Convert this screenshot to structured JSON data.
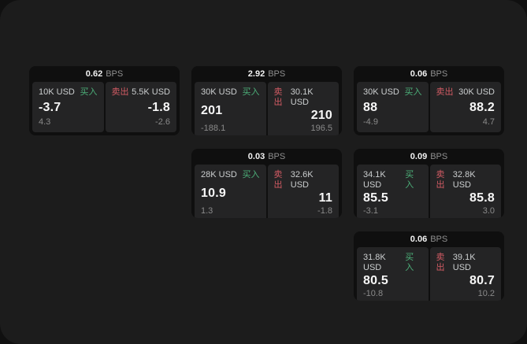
{
  "labels": {
    "unit": "BPS",
    "buy_label": "买入",
    "sell_label": "卖出"
  },
  "colors": {
    "screen_bg": "#1c1c1c",
    "card_bg": "#0f0f0f",
    "panel_bg": "#242425",
    "buy_green": "#4caf79",
    "sell_red": "#d25b64",
    "price_text": "#f7f7f7",
    "muted_text": "#8a8a8a"
  },
  "cards": [
    {
      "bps": "0.62",
      "grid": {
        "row": 1,
        "col": 1
      },
      "buy": {
        "amount": "10K USD",
        "price": "-3.7",
        "change": "4.3"
      },
      "sell": {
        "amount": "5.5K USD",
        "price": "-1.8",
        "change": "-2.6"
      }
    },
    {
      "bps": "2.92",
      "grid": {
        "row": 1,
        "col": 2
      },
      "buy": {
        "amount": "30K USD",
        "price": "201",
        "change": "-188.1"
      },
      "sell": {
        "amount": "30.1K USD",
        "price": "210",
        "change": "196.5"
      }
    },
    {
      "bps": "0.06",
      "grid": {
        "row": 1,
        "col": 3
      },
      "buy": {
        "amount": "30K USD",
        "price": "88",
        "change": "-4.9"
      },
      "sell": {
        "amount": "30K USD",
        "price": "88.2",
        "change": "4.7"
      }
    },
    {
      "bps": "0.03",
      "grid": {
        "row": 2,
        "col": 2
      },
      "buy": {
        "amount": "28K USD",
        "price": "10.9",
        "change": "1.3"
      },
      "sell": {
        "amount": "32.6K USD",
        "price": "11",
        "change": "-1.8"
      }
    },
    {
      "bps": "0.09",
      "grid": {
        "row": 2,
        "col": 3
      },
      "buy": {
        "amount": "34.1K USD",
        "price": "85.5",
        "change": "-3.1"
      },
      "sell": {
        "amount": "32.8K USD",
        "price": "85.8",
        "change": "3.0"
      }
    },
    {
      "bps": "0.06",
      "grid": {
        "row": 3,
        "col": 3
      },
      "buy": {
        "amount": "31.8K USD",
        "price": "80.5",
        "change": "-10.8"
      },
      "sell": {
        "amount": "39.1K USD",
        "price": "80.7",
        "change": "10.2"
      }
    }
  ]
}
